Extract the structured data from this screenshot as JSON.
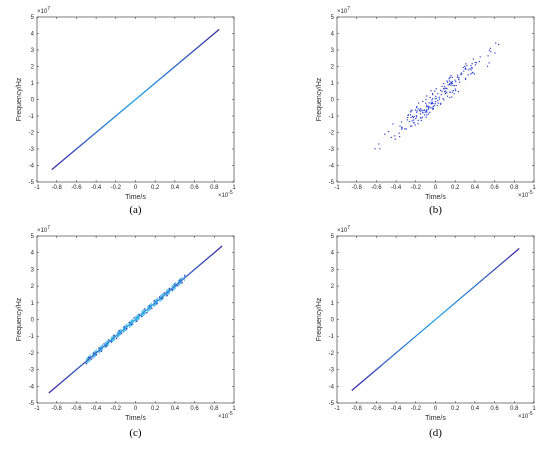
{
  "chart_data": [
    {
      "type": "line",
      "caption": "(a)",
      "xlabel": "Time/s",
      "ylabel": "Frequency/Hz",
      "x_exponent": "×10",
      "x_exponent_power": "-5",
      "y_exponent": "×10",
      "y_exponent_power": "7",
      "xlim": [
        -1,
        1
      ],
      "ylim": [
        -5,
        5
      ],
      "xticks": [
        "-1",
        "-0.8",
        "-0.6",
        "-0.4",
        "-0.2",
        "0",
        "0.2",
        "0.4",
        "0.6",
        "0.8",
        "1"
      ],
      "yticks": [
        "-5",
        "-4",
        "-3",
        "-2",
        "-1",
        "0",
        "1",
        "2",
        "3",
        "4",
        "5"
      ],
      "series": [
        {
          "style": "clean",
          "x": [
            -0.85,
            0.85
          ],
          "y": [
            -4.25,
            4.25
          ]
        }
      ]
    },
    {
      "type": "scatter",
      "caption": "(b)",
      "xlabel": "Time/s",
      "ylabel": "Frequency/Hz",
      "x_exponent": "×10",
      "x_exponent_power": "-5",
      "y_exponent": "×10",
      "y_exponent_power": "7",
      "xlim": [
        -1,
        1
      ],
      "ylim": [
        -5,
        5
      ],
      "xticks": [
        "-1",
        "-0.8",
        "-0.6",
        "-0.4",
        "-0.2",
        "0",
        "0.2",
        "0.4",
        "0.6",
        "0.8",
        "1"
      ],
      "yticks": [
        "-5",
        "-4",
        "-3",
        "-2",
        "-1",
        "0",
        "1",
        "2",
        "3",
        "4",
        "5"
      ],
      "series": [
        {
          "style": "scatter",
          "x": [
            -0.8,
            0.8
          ],
          "y": [
            -4.0,
            4.0
          ],
          "points": 220,
          "spread": 0.35
        }
      ]
    },
    {
      "type": "line",
      "caption": "(c)",
      "xlabel": "Time/s",
      "ylabel": "Frequency/Hz",
      "x_exponent": "×10",
      "x_exponent_power": "-5",
      "y_exponent": "×10",
      "y_exponent_power": "7",
      "xlim": [
        -1,
        1
      ],
      "ylim": [
        -5,
        5
      ],
      "xticks": [
        "-1",
        "-0.8",
        "-0.6",
        "-0.4",
        "-0.2",
        "0",
        "0.2",
        "0.4",
        "0.6",
        "0.8",
        "1"
      ],
      "yticks": [
        "-5",
        "-4",
        "-3",
        "-2",
        "-1",
        "0",
        "1",
        "2",
        "3",
        "4",
        "5"
      ],
      "series": [
        {
          "style": "bands",
          "x": [
            -0.88,
            0.88
          ],
          "y": [
            -4.4,
            4.4
          ],
          "band_x": [
            -0.5,
            0.5
          ]
        }
      ]
    },
    {
      "type": "line",
      "caption": "(d)",
      "xlabel": "Time/s",
      "ylabel": "Frequency/Hz",
      "x_exponent": "×10",
      "x_exponent_power": "-5",
      "y_exponent": "×10",
      "y_exponent_power": "7",
      "xlim": [
        -1,
        1
      ],
      "ylim": [
        -5,
        5
      ],
      "xticks": [
        "-1",
        "-0.8",
        "-0.6",
        "-0.4",
        "-0.2",
        "0",
        "0.2",
        "0.4",
        "0.6",
        "0.8",
        "1"
      ],
      "yticks": [
        "-5",
        "-4",
        "-3",
        "-2",
        "-1",
        "0",
        "1",
        "2",
        "3",
        "4",
        "5"
      ],
      "series": [
        {
          "style": "clean",
          "x": [
            -0.85,
            0.85
          ],
          "y": [
            -4.25,
            4.25
          ]
        }
      ]
    }
  ],
  "colors": {
    "axis": "#262626",
    "line_dark": "#3a2aa8",
    "line_light": "#1fa7e6",
    "scatter": "#2b3fd0"
  }
}
